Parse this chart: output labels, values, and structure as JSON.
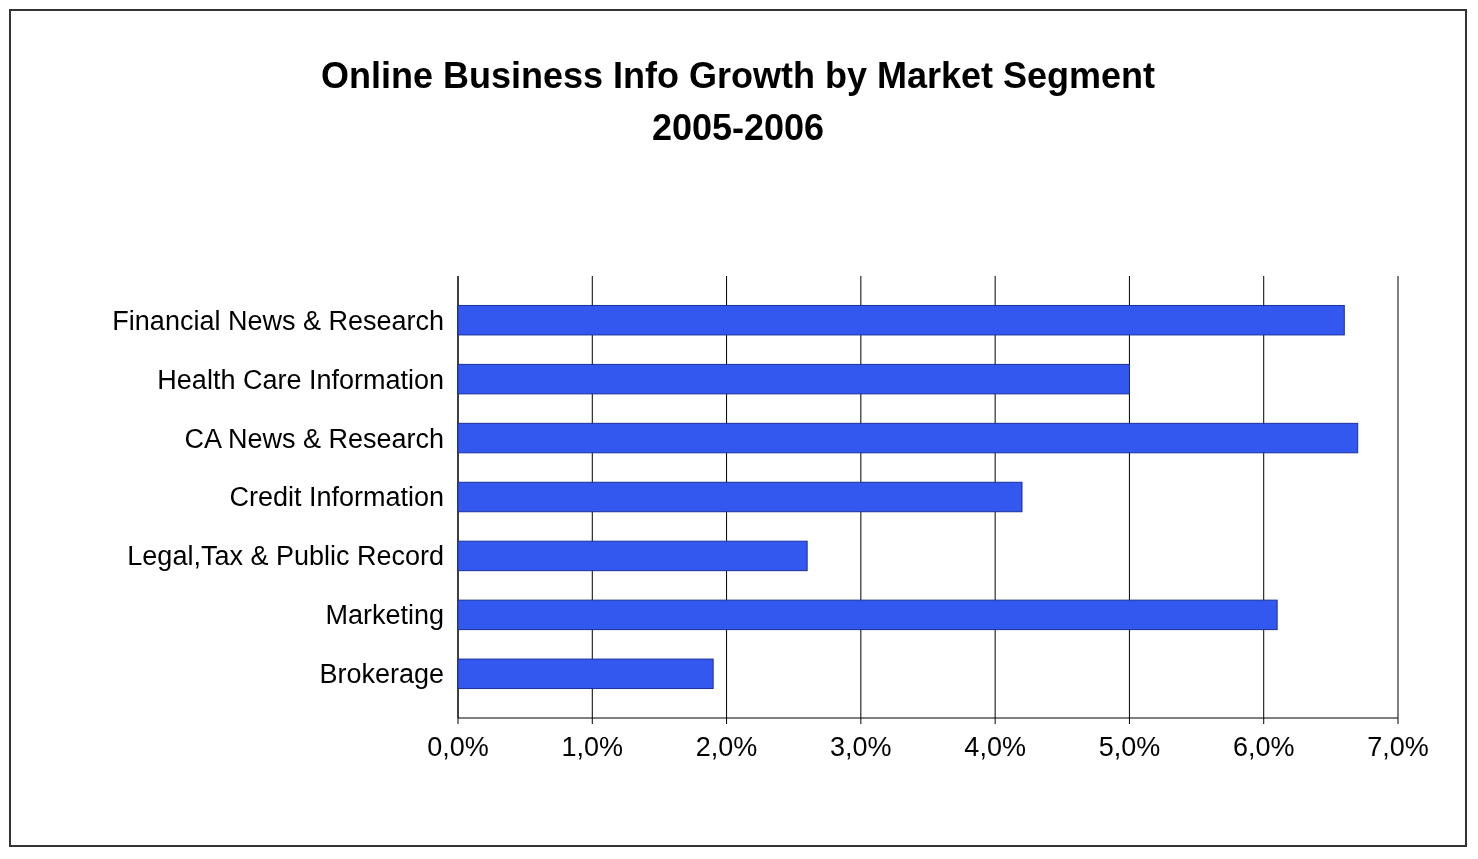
{
  "chart_data": {
    "type": "bar",
    "orientation": "horizontal",
    "title": "Online Business Info Growth by Market Segment 2005-2006",
    "categories": [
      "Financial News & Research",
      "Health Care Information",
      "CA News & Research",
      "Credit Information",
      "Legal,Tax & Public Record",
      "Marketing",
      "Brokerage"
    ],
    "values": [
      6.6,
      5.0,
      6.7,
      4.2,
      2.6,
      6.1,
      1.9
    ],
    "color": "#3358f0",
    "xlim": [
      0,
      7
    ],
    "xticks": [
      {
        "value": 0,
        "label": "0,0%"
      },
      {
        "value": 1,
        "label": "1,0%"
      },
      {
        "value": 2,
        "label": "2,0%"
      },
      {
        "value": 3,
        "label": "3,0%"
      },
      {
        "value": 4,
        "label": "4,0%"
      },
      {
        "value": 5,
        "label": "5,0%"
      },
      {
        "value": 6,
        "label": "6,0%"
      },
      {
        "value": 7,
        "label": "7,0%"
      }
    ],
    "grid": "x"
  }
}
